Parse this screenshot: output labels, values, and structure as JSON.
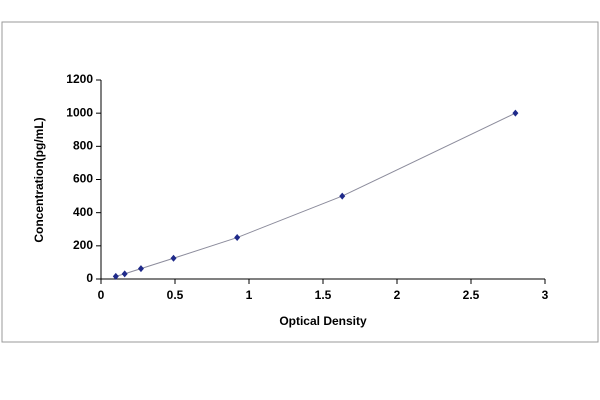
{
  "chart_data": {
    "type": "scatter",
    "x_label": "Optical Density",
    "y_label": "Concentration(pg/mL)",
    "x": [
      0.1,
      0.16,
      0.27,
      0.49,
      0.92,
      1.63,
      2.8
    ],
    "values": [
      15.6,
      31.2,
      62.5,
      125,
      250,
      500,
      1000
    ],
    "color": "#1f2a8a",
    "line_color": "#8c8c9c",
    "connect": true,
    "xlim": [
      0,
      3
    ],
    "xticks": [
      0,
      0.5,
      1,
      1.5,
      2,
      2.5,
      3
    ],
    "ylim": [
      0,
      1200
    ],
    "yticks": [
      0,
      200,
      400,
      600,
      800,
      1000,
      1200
    ],
    "grid": false
  }
}
